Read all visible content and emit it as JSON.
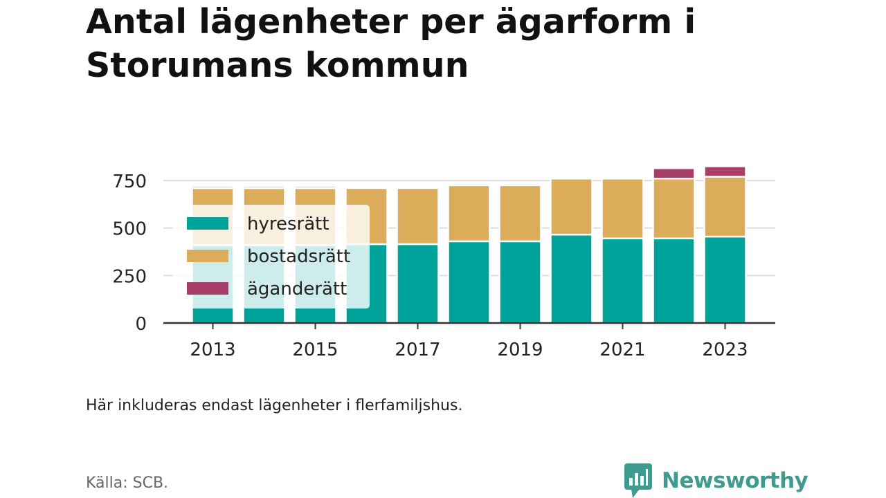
{
  "header": {
    "title": "Antal lägenheter per ägarform i Storumans kommun"
  },
  "chart_data": {
    "type": "bar",
    "stacked": true,
    "categories": [
      "2013",
      "2014",
      "2015",
      "2016",
      "2017",
      "2018",
      "2019",
      "2020",
      "2021",
      "2022",
      "2023"
    ],
    "series": [
      {
        "name": "hyresrätt",
        "color": "#00a39a",
        "values": [
          410,
          410,
          410,
          415,
          415,
          430,
          430,
          465,
          445,
          445,
          455
        ]
      },
      {
        "name": "bostadsrätt",
        "color": "#dbad5a",
        "values": [
          300,
          300,
          300,
          295,
          295,
          295,
          295,
          295,
          315,
          315,
          315
        ]
      },
      {
        "name": "äganderätt",
        "color": "#a83f68",
        "values": [
          10,
          10,
          10,
          0,
          0,
          0,
          0,
          0,
          0,
          55,
          55
        ]
      }
    ],
    "xticks": [
      "2013",
      "2015",
      "2017",
      "2019",
      "2021",
      "2023"
    ],
    "yticks": [
      0,
      250,
      500,
      750
    ],
    "ylim": [
      0,
      840
    ],
    "grid": true,
    "legend_position": "top-left"
  },
  "footer": {
    "note": "Här inkluderas endast lägenheter i flerfamiljshus.",
    "source": "Källa: SCB.",
    "brand": "Newsworthy"
  },
  "colors": {
    "brand": "#3f9a8f"
  },
  "icons": {
    "brand_logo": "bar-chart-speech-bubble-icon"
  }
}
